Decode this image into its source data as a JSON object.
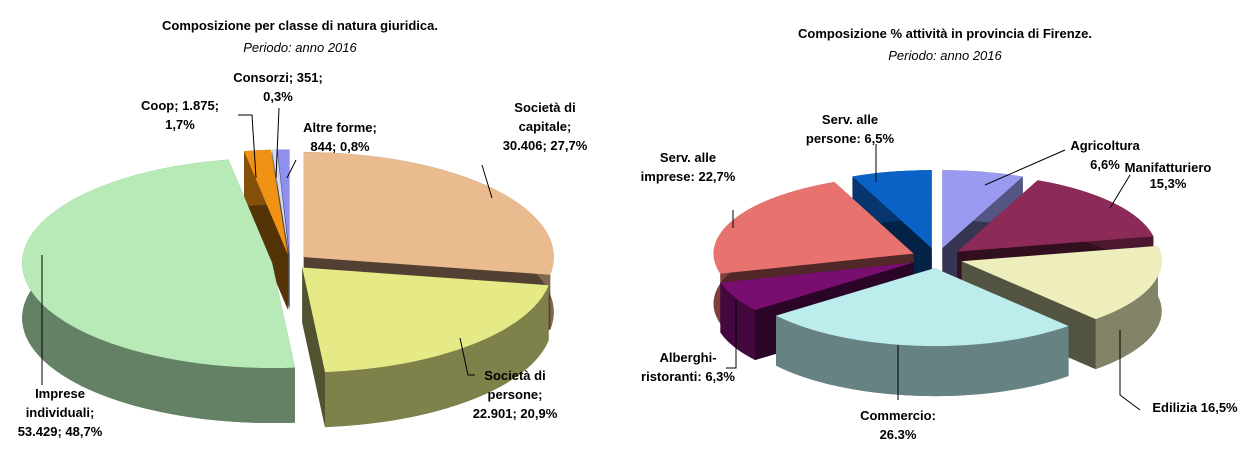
{
  "chart_data": [
    {
      "type": "pie",
      "title": "Composizione per classe di natura giuridica.",
      "subtitle": "Periodo: anno 2016",
      "values": [
        30406,
        22901,
        53429,
        1875,
        351,
        844
      ],
      "percents": [
        27.7,
        20.9,
        48.7,
        1.7,
        0.3,
        0.8
      ],
      "labels": [
        [
          "Società di",
          "capitale;",
          "30.406; 27,7%"
        ],
        [
          "Società di",
          "persone;",
          "22.901; 20,9%"
        ],
        [
          "Imprese",
          "individuali;",
          "53.429; 48,7%"
        ],
        [
          "Coop; 1.875;",
          "1,7%"
        ],
        [
          "Consorzi; 351;",
          "0,3%"
        ],
        [
          "Altre forme;",
          "844; 0,8%"
        ]
      ],
      "colors": [
        "#e9bb8e",
        "#e6ea86",
        "#b8eab8",
        "#f09214",
        "#d3d8ec",
        "#8f8ff0"
      ]
    },
    {
      "type": "pie",
      "title": "Composizione % attività in provincia di Firenze.",
      "subtitle": "Periodo: anno 2016",
      "values": [
        6.6,
        15.3,
        16.5,
        26.3,
        6.3,
        22.7,
        6.5
      ],
      "labels": [
        [
          "Agricoltura",
          "6,6%"
        ],
        [
          "Manifatturiero",
          "15,3%"
        ],
        [
          "Edilizia 16,5%"
        ],
        [
          "Commercio:",
          "26.3%"
        ],
        [
          "Alberghi-",
          "ristoranti: 6,3%"
        ],
        [
          "Serv. alle",
          "imprese: 22,7%"
        ],
        [
          "Serv. alle",
          "persone: 6,5%"
        ]
      ],
      "colors": [
        "#9a9af0",
        "#8c2a58",
        "#eeeebc",
        "#bcecec",
        "#7a0e70",
        "#e8726e",
        "#0a62c6"
      ]
    }
  ]
}
